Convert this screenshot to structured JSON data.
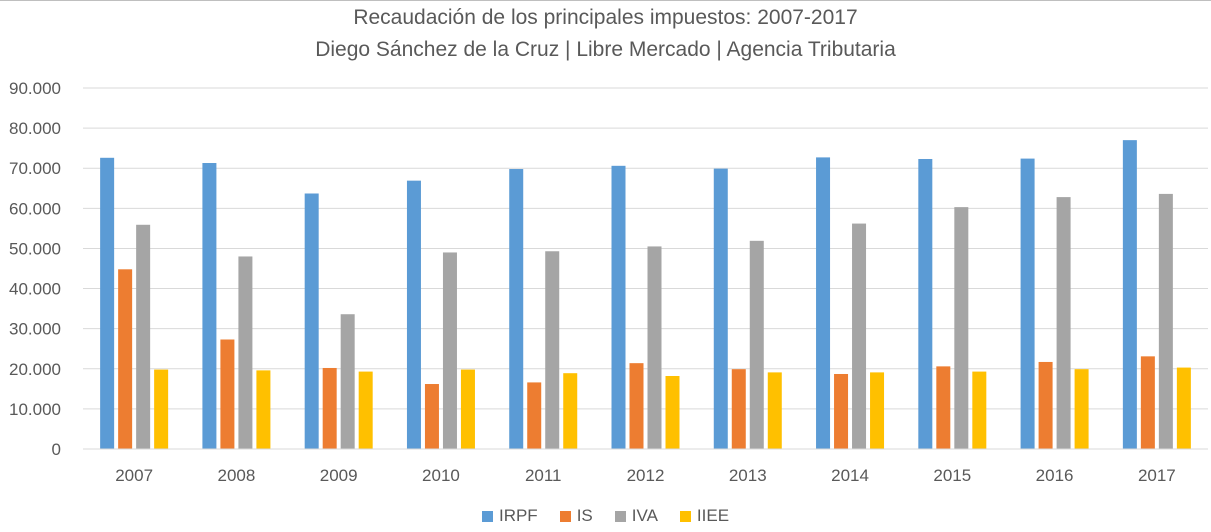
{
  "chart_data": {
    "type": "bar",
    "title": "Recaudación de los principales impuestos: 2007-2017",
    "subtitle": "Diego Sánchez de la Cruz | Libre Mercado | Agencia Tributaria",
    "xlabel": "",
    "ylabel": "",
    "ylim": [
      0,
      90000
    ],
    "yticks": [
      0,
      10000,
      20000,
      30000,
      40000,
      50000,
      60000,
      70000,
      80000,
      90000
    ],
    "ytick_labels": [
      "0",
      "10.000",
      "20.000",
      "30.000",
      "40.000",
      "50.000",
      "60.000",
      "70.000",
      "80.000",
      "90.000"
    ],
    "grid": true,
    "legend_position": "bottom",
    "categories": [
      "2007",
      "2008",
      "2009",
      "2010",
      "2011",
      "2012",
      "2013",
      "2014",
      "2015",
      "2016",
      "2017"
    ],
    "series": [
      {
        "name": "IRPF",
        "color": "#5B9BD5",
        "values": [
          72600,
          71300,
          63700,
          66900,
          69800,
          70600,
          69900,
          72700,
          72300,
          72400,
          77000
        ]
      },
      {
        "name": "IS",
        "color": "#ED7D31",
        "values": [
          44800,
          27300,
          20200,
          16200,
          16600,
          21400,
          19900,
          18700,
          20600,
          21700,
          23100
        ]
      },
      {
        "name": "IVA",
        "color": "#A5A5A5",
        "values": [
          55900,
          48000,
          33600,
          49000,
          49300,
          50500,
          51900,
          56200,
          60300,
          62800,
          63600
        ]
      },
      {
        "name": "IIEE",
        "color": "#FFC000",
        "values": [
          19800,
          19600,
          19300,
          19800,
          18900,
          18200,
          19100,
          19100,
          19300,
          19900,
          20300
        ]
      }
    ]
  }
}
